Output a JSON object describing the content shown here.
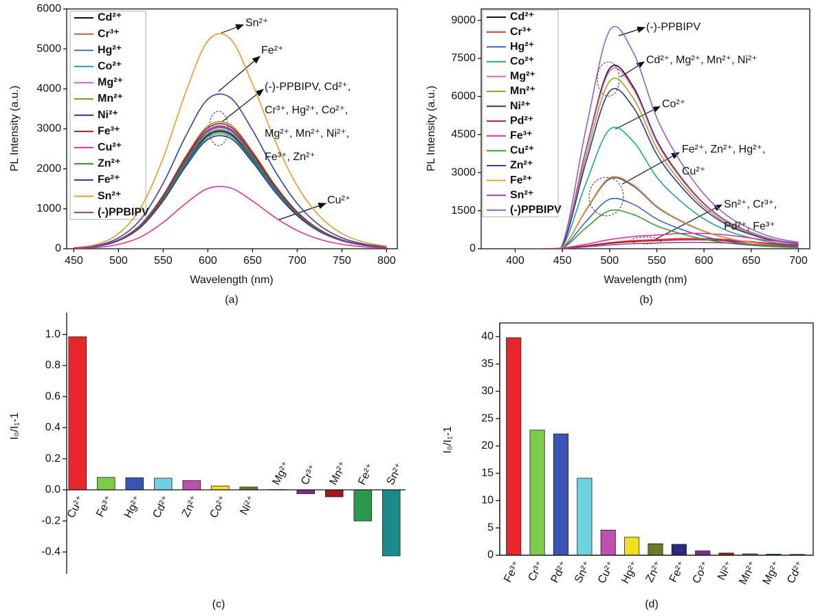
{
  "chart_data": [
    {
      "type": "line",
      "xlabel": "Wavelength (nm)",
      "ylabel": "PL Intensity (a.u.)",
      "panel_label": "(a)",
      "x": [
        450,
        475,
        500,
        525,
        550,
        575,
        600,
        625,
        650,
        675,
        700,
        725,
        750,
        775,
        800
      ],
      "xlim": [
        442,
        812
      ],
      "ylim": [
        0,
        6000
      ],
      "xticks": [
        450,
        500,
        550,
        600,
        650,
        700,
        750,
        800
      ],
      "yticks": [
        0,
        1000,
        2000,
        3000,
        4000,
        5000,
        6000
      ],
      "legend": "upper left",
      "series": [
        {
          "name": "Cd²⁺",
          "color": "#111111",
          "values": [
            15,
            59,
            207,
            561,
            1239,
            2124,
            2832,
            2862,
            2242,
            1475,
            856,
            443,
            207,
            89,
            35
          ]
        },
        {
          "name": "Cr³⁺",
          "color": "#d9504a",
          "values": [
            15,
            60,
            210,
            570,
            1260,
            2160,
            2880,
            2910,
            2280,
            1500,
            870,
            450,
            210,
            90,
            36
          ]
        },
        {
          "name": "Hg²⁺",
          "color": "#4a6cc0",
          "values": [
            15,
            61,
            214,
            580,
            1281,
            2196,
            2928,
            2959,
            2318,
            1525,
            885,
            458,
            214,
            92,
            37
          ]
        },
        {
          "name": "Co²⁺",
          "color": "#22a0a0",
          "values": [
            15,
            58,
            203,
            551,
            1218,
            2088,
            2784,
            2813,
            2204,
            1450,
            841,
            435,
            203,
            87,
            35
          ]
        },
        {
          "name": "Mg²⁺",
          "color": "#d860c4",
          "values": [
            16,
            62,
            217,
            589,
            1302,
            2232,
            2976,
            3007,
            2356,
            1550,
            899,
            465,
            217,
            93,
            37
          ]
        },
        {
          "name": "Mn²⁺",
          "color": "#8f8f2c",
          "values": [
            16,
            64,
            224,
            608,
            1344,
            2304,
            3072,
            3104,
            2432,
            1600,
            928,
            480,
            224,
            96,
            38
          ]
        },
        {
          "name": "Ni²⁺",
          "color": "#2e2e88",
          "values": [
            14,
            57,
            200,
            542,
            1197,
            2052,
            2736,
            2765,
            2166,
            1425,
            827,
            428,
            200,
            86,
            34
          ]
        },
        {
          "name": "Fe³⁺",
          "color": "#a01c1c",
          "values": [
            16,
            63,
            221,
            599,
            1323,
            2268,
            3024,
            3056,
            2394,
            1575,
            914,
            473,
            221,
            95,
            38
          ]
        },
        {
          "name": "Cu²⁺",
          "color": "#e0309a",
          "values": [
            8,
            31,
            110,
            298,
            659,
            1130,
            1507,
            1523,
            1193,
            785,
            455,
            236,
            110,
            47,
            19
          ]
        },
        {
          "name": "Zn²⁺",
          "color": "#2a8a3a",
          "values": [
            15,
            60,
            209,
            566,
            1252,
            2146,
            2861,
            2891,
            2265,
            1490,
            864,
            447,
            209,
            89,
            36
          ]
        },
        {
          "name": "Fe²⁺",
          "color": "#3040b0",
          "values": [
            20,
            78,
            273,
            741,
            1638,
            2808,
            3744,
            3783,
            2964,
            1950,
            1131,
            585,
            273,
            117,
            47
          ]
        },
        {
          "name": "Sn²⁺",
          "color": "#e89a2a",
          "values": [
            27,
            108,
            379,
            1030,
            2276,
            3902,
            5203,
            5257,
            4119,
            2710,
            1572,
            813,
            379,
            163,
            65
          ]
        },
        {
          "name": "(-)PPBIPV",
          "color": "#8a3a8a",
          "values": [
            15,
            62,
            216,
            585,
            1294,
            2218,
            2957,
            2988,
            2341,
            1540,
            893,
            462,
            216,
            92,
            37
          ]
        }
      ],
      "annotations": [
        "Sn²⁺",
        "Fe²⁺",
        "(-)-PPBIPV, Cd²⁺,",
        "Cr³⁺, Hg²⁺, Co²⁺,",
        "Mg²⁺, Mn²⁺, Ni²⁺,",
        "Fe³⁺, Zn²⁺",
        "Cu²⁺"
      ]
    },
    {
      "type": "line",
      "xlabel": "Wavelength (nm)",
      "ylabel": "PL Intensity (a.u.)",
      "panel_label": "(b)",
      "x": [
        400,
        425,
        450,
        475,
        500,
        525,
        550,
        575,
        600,
        625,
        650,
        675,
        700
      ],
      "xlim": [
        364,
        712
      ],
      "ylim": [
        0,
        9450
      ],
      "xticks": [
        400,
        450,
        500,
        550,
        600,
        650,
        700
      ],
      "yticks": [
        0,
        1500,
        3000,
        4500,
        6000,
        7500,
        9000
      ],
      "legend": "upper left",
      "series": [
        {
          "name": "Cd²⁺",
          "color": "#111111",
          "values": [
            0,
            0,
            142,
            3905,
            7100,
            6390,
            4260,
            2840,
            1775,
            1065,
            639,
            355,
            213
          ]
        },
        {
          "name": "Cr³⁺",
          "color": "#e03030",
          "values": [
            0,
            0,
            20,
            120,
            240,
            320,
            360,
            400,
            400,
            360,
            280,
            200,
            140
          ]
        },
        {
          "name": "Hg²⁺",
          "color": "#4060c0",
          "values": [
            0,
            0,
            39,
            1073,
            1950,
            1755,
            1170,
            780,
            488,
            293,
            176,
            98,
            59
          ]
        },
        {
          "name": "Co²⁺",
          "color": "#20a0a0",
          "values": [
            0,
            0,
            94,
            2585,
            4700,
            4230,
            2820,
            1880,
            1175,
            705,
            423,
            235,
            141
          ]
        },
        {
          "name": "Mg²⁺",
          "color": "#e060c0",
          "values": [
            0,
            0,
            140,
            3850,
            7000,
            6300,
            4200,
            2800,
            1750,
            1050,
            630,
            350,
            210
          ]
        },
        {
          "name": "Mn²⁺",
          "color": "#a0a030",
          "values": [
            0,
            0,
            132,
            3630,
            6600,
            5940,
            3960,
            2640,
            1650,
            990,
            594,
            330,
            198
          ]
        },
        {
          "name": "Ni²⁺",
          "color": "#303090",
          "values": [
            0,
            0,
            124,
            3410,
            6200,
            5580,
            3720,
            2480,
            1550,
            930,
            558,
            310,
            186
          ]
        },
        {
          "name": "Pd²⁺",
          "color": "#a02020",
          "values": [
            0,
            0,
            18,
            105,
            210,
            280,
            315,
            350,
            350,
            315,
            245,
            175,
            123
          ]
        },
        {
          "name": "Fe³⁺",
          "color": "#e030a0",
          "values": [
            0,
            0,
            30,
            180,
            360,
            480,
            540,
            600,
            600,
            540,
            420,
            300,
            210
          ]
        },
        {
          "name": "Cu²⁺",
          "color": "#30a030",
          "values": [
            0,
            0,
            30,
            825,
            1500,
            1350,
            900,
            600,
            375,
            225,
            135,
            75,
            45
          ]
        },
        {
          "name": "Zn²⁺",
          "color": "#3040b0",
          "values": [
            0,
            0,
            55,
            1513,
            2750,
            2475,
            1650,
            1100,
            688,
            413,
            248,
            138,
            83
          ]
        },
        {
          "name": "Fe²⁺",
          "color": "#e8a030",
          "values": [
            0,
            0,
            56,
            1540,
            2800,
            2520,
            1680,
            1120,
            700,
            420,
            252,
            140,
            84
          ]
        },
        {
          "name": "Sn²⁺",
          "color": "#a040a0",
          "values": [
            0,
            0,
            13,
            75,
            150,
            200,
            225,
            250,
            250,
            225,
            175,
            125,
            88
          ]
        },
        {
          "name": "(-)PPBIPV",
          "color": "#9060d0",
          "values": [
            0,
            0,
            172,
            4730,
            8600,
            7740,
            5160,
            3440,
            2150,
            1290,
            774,
            430,
            258
          ]
        }
      ],
      "annotations": [
        "(-)-PPBIPV",
        "Cd²⁺, Mg²⁺, Mn²⁺, Ni²⁺",
        "Co²⁺",
        "Fe²⁺, Zn²⁺, Hg²⁺,",
        "Cu²⁺",
        "Sn²⁺, Cr³⁺,",
        "Pd²⁺, Fe³⁺"
      ]
    },
    {
      "type": "bar",
      "ylabel": "I₀/I₁-1",
      "panel_label": "(c)",
      "categories": [
        "Cu²⁺",
        "Fe³⁺",
        "Hg²⁺",
        "Cd²⁺",
        "Zn²⁺",
        "Co²⁺",
        "Ni²⁺",
        "Mg²⁺",
        "Cr³⁺",
        "Mn²⁺",
        "Fe²⁺",
        "Sn²⁺"
      ],
      "values": [
        0.985,
        0.08,
        0.078,
        0.075,
        0.06,
        0.025,
        0.018,
        0.002,
        -0.025,
        -0.045,
        -0.2,
        -0.425
      ],
      "colors": [
        "#e8262b",
        "#7ccc4c",
        "#3a55b4",
        "#6fd0e0",
        "#c050b0",
        "#f0e020",
        "#6a7a2a",
        "#2a2a80",
        "#7a2e90",
        "#a01818",
        "#2a9a4a",
        "#1a8a8a"
      ],
      "ylim": [
        -0.54,
        1.14
      ],
      "yticks": [
        -0.4,
        -0.2,
        {
          "value": 0,
          "label": "0.0"
        },
        0.2,
        0.4,
        0.6,
        0.8,
        {
          "value": 1,
          "label": "1.0"
        }
      ]
    },
    {
      "type": "bar",
      "ylabel": "I₀/I₁-1",
      "panel_label": "(d)",
      "categories": [
        "Fe³⁺",
        "Cr³⁺",
        "Pd²⁺",
        "Sn²⁺",
        "Cu²⁺",
        "Hg²⁺",
        "Zn²⁺",
        "Fe²⁺",
        "Co²⁺",
        "Ni²⁺",
        "Mn²⁺",
        "Mg²⁺",
        "Cd²⁺"
      ],
      "values": [
        39.8,
        22.9,
        22.2,
        14.1,
        4.6,
        3.3,
        2.1,
        2.0,
        0.8,
        0.4,
        0.25,
        0.2,
        0.15
      ],
      "colors": [
        "#e8262b",
        "#7ccc4c",
        "#3a55b4",
        "#6fd0e0",
        "#c050b0",
        "#f0e020",
        "#6a7a2a",
        "#2a2a80",
        "#7a2e90",
        "#a01818",
        "#2a9a4a",
        "#1a8a8a",
        "#23308a"
      ],
      "ylim": [
        0,
        42.5
      ],
      "yticks": [
        0,
        5,
        10,
        15,
        20,
        25,
        30,
        35,
        40
      ]
    }
  ]
}
